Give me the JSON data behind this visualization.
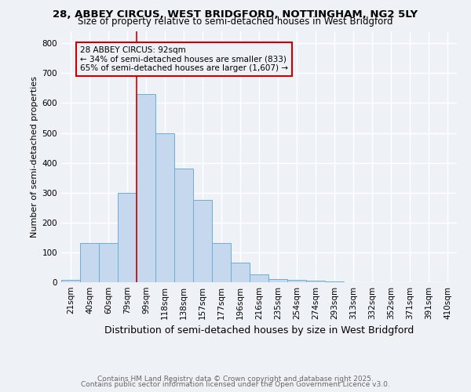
{
  "title1": "28, ABBEY CIRCUS, WEST BRIDGFORD, NOTTINGHAM, NG2 5LY",
  "title2": "Size of property relative to semi-detached houses in West Bridgford",
  "xlabel": "Distribution of semi-detached houses by size in West Bridgford",
  "ylabel": "Number of semi-detached properties",
  "categories": [
    "21sqm",
    "40sqm",
    "60sqm",
    "79sqm",
    "99sqm",
    "118sqm",
    "138sqm",
    "157sqm",
    "177sqm",
    "196sqm",
    "216sqm",
    "235sqm",
    "254sqm",
    "274sqm",
    "293sqm",
    "313sqm",
    "332sqm",
    "352sqm",
    "371sqm",
    "391sqm",
    "410sqm"
  ],
  "values": [
    8,
    130,
    130,
    300,
    630,
    500,
    380,
    275,
    130,
    65,
    25,
    10,
    7,
    5,
    3,
    0,
    0,
    0,
    0,
    0,
    0
  ],
  "bar_color": "#c5d8ee",
  "bar_edge_color": "#6aaed6",
  "property_bar_index": 4,
  "annotation_title": "28 ABBEY CIRCUS: 92sqm",
  "annotation_line1": "← 34% of semi-detached houses are smaller (833)",
  "annotation_line2": "65% of semi-detached houses are larger (1,607) →",
  "red_line_color": "#cc0000",
  "footnote1": "Contains HM Land Registry data © Crown copyright and database right 2025.",
  "footnote2": "Contains public sector information licensed under the Open Government Licence v3.0.",
  "ylim": [
    0,
    840
  ],
  "yticks": [
    0,
    100,
    200,
    300,
    400,
    500,
    600,
    700,
    800
  ],
  "background_color": "#eef2f7",
  "grid_color": "#ffffff",
  "title1_fontsize": 9.5,
  "title2_fontsize": 8.5,
  "ylabel_fontsize": 8.0,
  "xlabel_fontsize": 9.0,
  "tick_fontsize": 7.5,
  "footnote_fontsize": 6.5,
  "footnote_color": "#666666"
}
